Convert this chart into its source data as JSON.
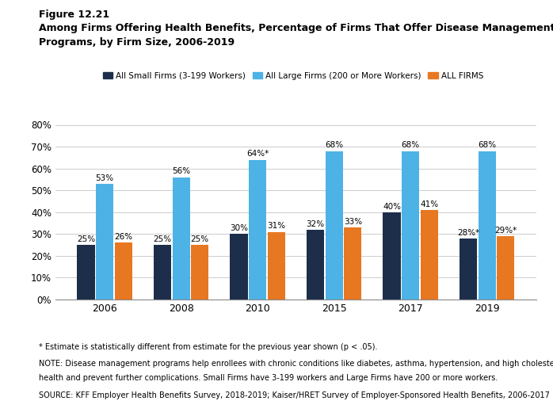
{
  "figure_label": "Figure 12.21",
  "title_line1": "Among Firms Offering Health Benefits, Percentage of Firms That Offer Disease Management",
  "title_line2": "Programs, by Firm Size, 2006-2019",
  "years": [
    2006,
    2008,
    2010,
    2015,
    2017,
    2019
  ],
  "small_firms": [
    25,
    25,
    30,
    32,
    40,
    28
  ],
  "large_firms": [
    53,
    56,
    64,
    68,
    68,
    68
  ],
  "all_firms": [
    26,
    25,
    31,
    33,
    41,
    29
  ],
  "small_labels": [
    "25%",
    "25%",
    "30%",
    "32%",
    "40%",
    "28%*"
  ],
  "large_labels": [
    "53%",
    "56%",
    "64%*",
    "68%",
    "68%",
    "68%"
  ],
  "all_labels": [
    "26%",
    "25%",
    "31%",
    "33%",
    "41%",
    "29%*"
  ],
  "color_small": "#1c2e4a",
  "color_large": "#4db3e6",
  "color_all": "#e87722",
  "ylim": [
    0,
    80
  ],
  "yticks": [
    0,
    10,
    20,
    30,
    40,
    50,
    60,
    70,
    80
  ],
  "legend_labels": [
    "All Small Firms (3-199 Workers)",
    "All Large Firms (200 or More Workers)",
    "ALL FIRMS"
  ],
  "footnote1": "* Estimate is statistically different from estimate for the previous year shown (p < .05).",
  "footnote2": "NOTE: Disease management programs help enrollees with chronic conditions like diabetes, asthma, hypertension, and high cholesterol improve their",
  "footnote2b": "health and prevent further complications. Small Firms have 3-199 workers and Large Firms have 200 or more workers.",
  "footnote3": "SOURCE: KFF Employer Health Benefits Survey, 2018-2019; Kaiser/HRET Survey of Employer-Sponsored Health Benefits, 2006-2017",
  "background_color": "#ffffff"
}
